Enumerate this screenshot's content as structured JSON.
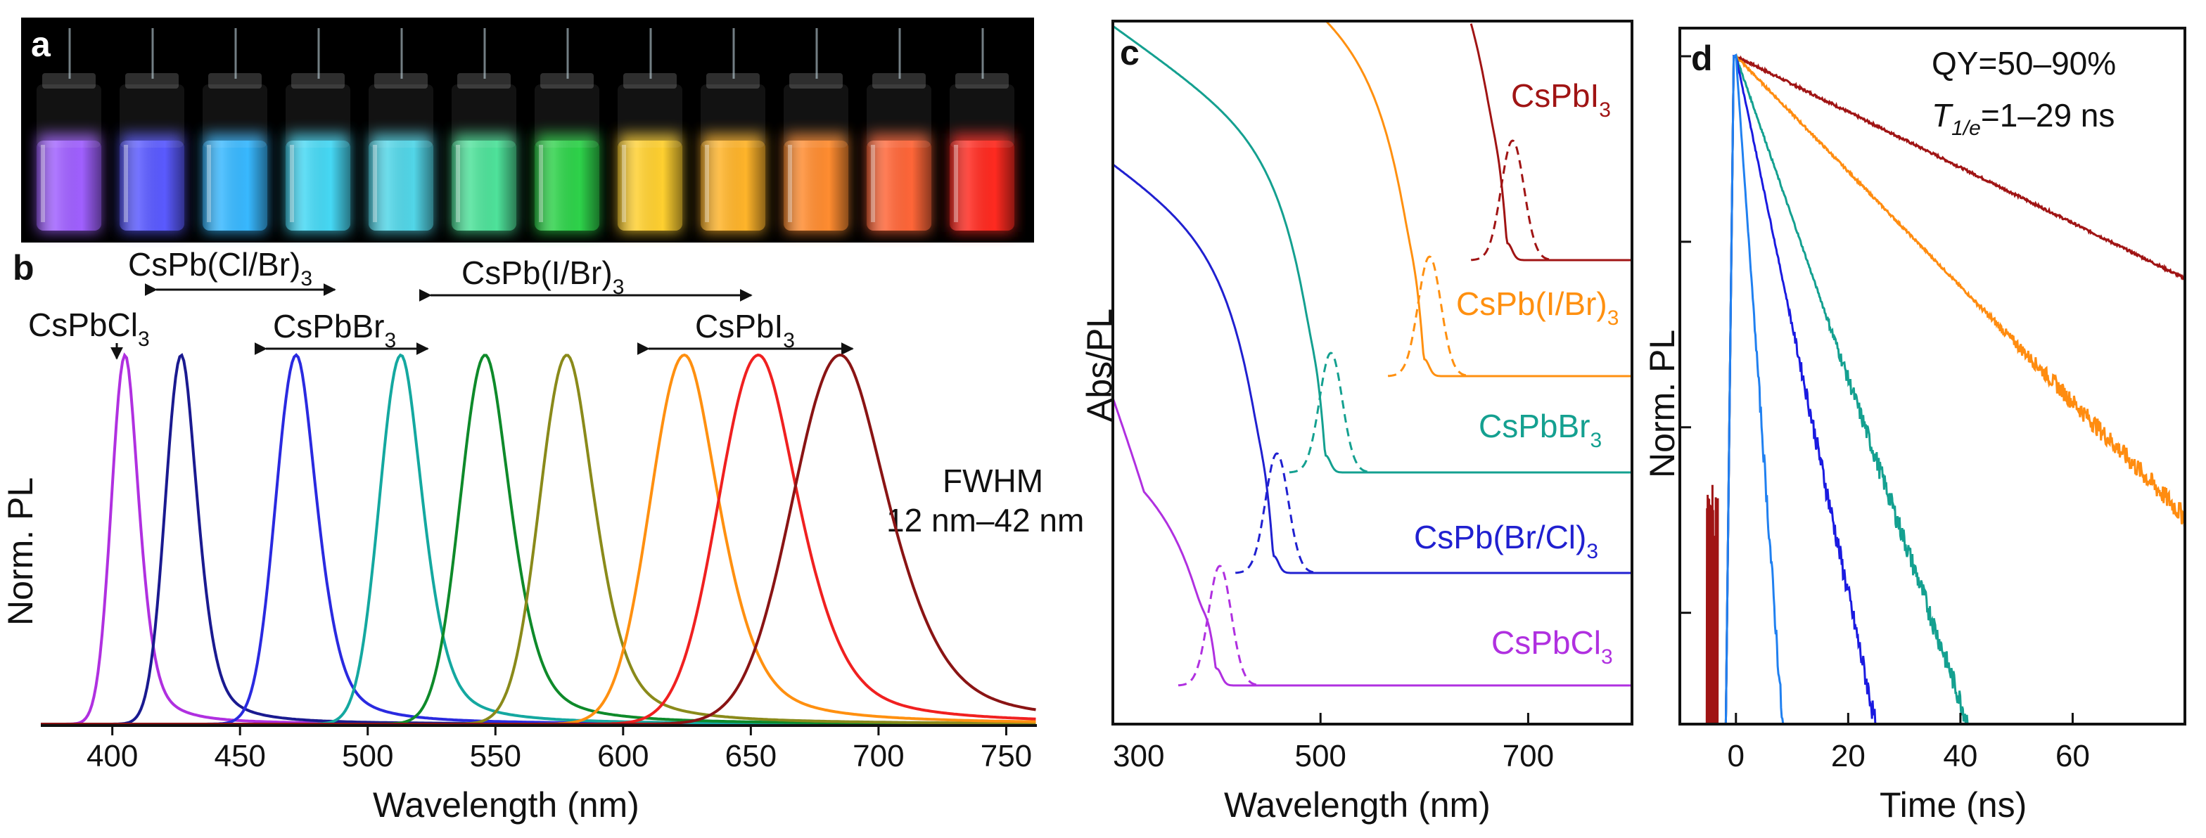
{
  "panel_a": {
    "letter": "a",
    "colors": [
      "#a060ff",
      "#5a5aff",
      "#38b8ff",
      "#46d8f4",
      "#52d6e8",
      "#4ee29a",
      "#2ed24a",
      "#ffd030",
      "#ffb42a",
      "#ff8c30",
      "#ff6638",
      "#ff2a20"
    ]
  },
  "panel_b": {
    "letter": "b",
    "ann_clbr": {
      "base": "CsPb(Cl/Br)",
      "sub": "3"
    },
    "ann_ibr": {
      "base": "CsPb(I/Br)",
      "sub": "3"
    },
    "ann_cl": {
      "base": "CsPbCl",
      "sub": "3"
    },
    "ann_br": {
      "base": "CsPbBr",
      "sub": "3"
    },
    "ann_i": {
      "base": "CsPbI",
      "sub": "3"
    },
    "fwhm_label": "FWHM",
    "fwhm_range": "12 nm–42 nm"
  },
  "panel_c": {
    "letter": "c",
    "labels": {
      "i": {
        "base": "CsPbI",
        "sub": "3"
      },
      "ibr": {
        "base": "CsPb(I/Br)",
        "sub": "3"
      },
      "br": {
        "base": "CsPbBr",
        "sub": "3"
      },
      "brcl": {
        "base": "CsPb(Br/Cl)",
        "sub": "3"
      },
      "cl": {
        "base": "CsPbCl",
        "sub": "3"
      }
    }
  },
  "panel_d": {
    "letter": "d",
    "qy": "QY=50–90%",
    "tau_sym": "T",
    "tau_sub": "1/e",
    "tau_val": "=1–29 ns"
  },
  "chart_data": [
    {
      "panel": "b",
      "type": "line",
      "xlabel": "Wavelength (nm)",
      "ylabel": "Norm. PL",
      "xlim": [
        372,
        762
      ],
      "ylim": [
        0,
        1.05
      ],
      "xticks": [
        400,
        450,
        500,
        550,
        600,
        650,
        700,
        750
      ],
      "series": [
        {
          "name": "CsPbCl3",
          "center": 405,
          "fwhm": 12,
          "color": "#b030e0"
        },
        {
          "name": "CsPb(Cl/Br)3 a",
          "center": 427,
          "fwhm": 14,
          "color": "#1a1a90"
        },
        {
          "name": "CsPb(Cl/Br)3 b",
          "center": 472,
          "fwhm": 18,
          "color": "#2a2ae0"
        },
        {
          "name": "CsPbBr3 a",
          "center": 513,
          "fwhm": 19,
          "color": "#14a8a0"
        },
        {
          "name": "CsPbBr3 b",
          "center": 546,
          "fwhm": 22,
          "color": "#0e8a2a"
        },
        {
          "name": "CsPb(I/Br)3",
          "center": 578,
          "fwhm": 24,
          "color": "#8a8a1a"
        },
        {
          "name": "CsPbI3 a",
          "center": 624,
          "fwhm": 30,
          "color": "#ff9010"
        },
        {
          "name": "CsPbI3 b",
          "center": 653,
          "fwhm": 35,
          "color": "#f02020"
        },
        {
          "name": "CsPbI3 c",
          "center": 685,
          "fwhm": 42,
          "color": "#8a1414"
        }
      ]
    },
    {
      "panel": "c",
      "type": "line",
      "xlabel": "Wavelength (nm)",
      "ylabel": "Abs/PL",
      "xlim": [
        300,
        800
      ],
      "xticks": [
        300,
        500,
        700
      ],
      "series": [
        {
          "name": "CsPbI3",
          "color": "#a01414",
          "absorption_edge": 680,
          "pl_peak": 685
        },
        {
          "name": "CsPb(I/Br)3",
          "color": "#ff9010",
          "absorption_edge": 600,
          "pl_peak": 605
        },
        {
          "name": "CsPbBr3",
          "color": "#14a090",
          "absorption_edge": 505,
          "pl_peak": 510
        },
        {
          "name": "CsPb(Br/Cl)3",
          "color": "#2020d0",
          "absorption_edge": 455,
          "pl_peak": 458
        },
        {
          "name": "CsPbCl3",
          "color": "#b030e0",
          "absorption_edge": 400,
          "pl_peak": 403
        }
      ]
    },
    {
      "panel": "d",
      "type": "line",
      "xlabel": "Time (ns)",
      "ylabel": "Norm. PL",
      "yscale": "log",
      "xlim": [
        -10,
        80
      ],
      "xticks": [
        0,
        20,
        40,
        60
      ],
      "series": [
        {
          "name": "CsPbI3",
          "color": "#a01414",
          "lifetime_ns": 29
        },
        {
          "name": "CsPb(I/Br)3",
          "color": "#ff8c10",
          "lifetime_ns": 14
        },
        {
          "name": "CsPbBr3",
          "color": "#14a090",
          "lifetime_ns": 5
        },
        {
          "name": "CsPb(Br/Cl)3",
          "color": "#1a1ae0",
          "lifetime_ns": 3
        },
        {
          "name": "CsPbCl3",
          "color": "#2080f0",
          "lifetime_ns": 1
        }
      ]
    }
  ]
}
